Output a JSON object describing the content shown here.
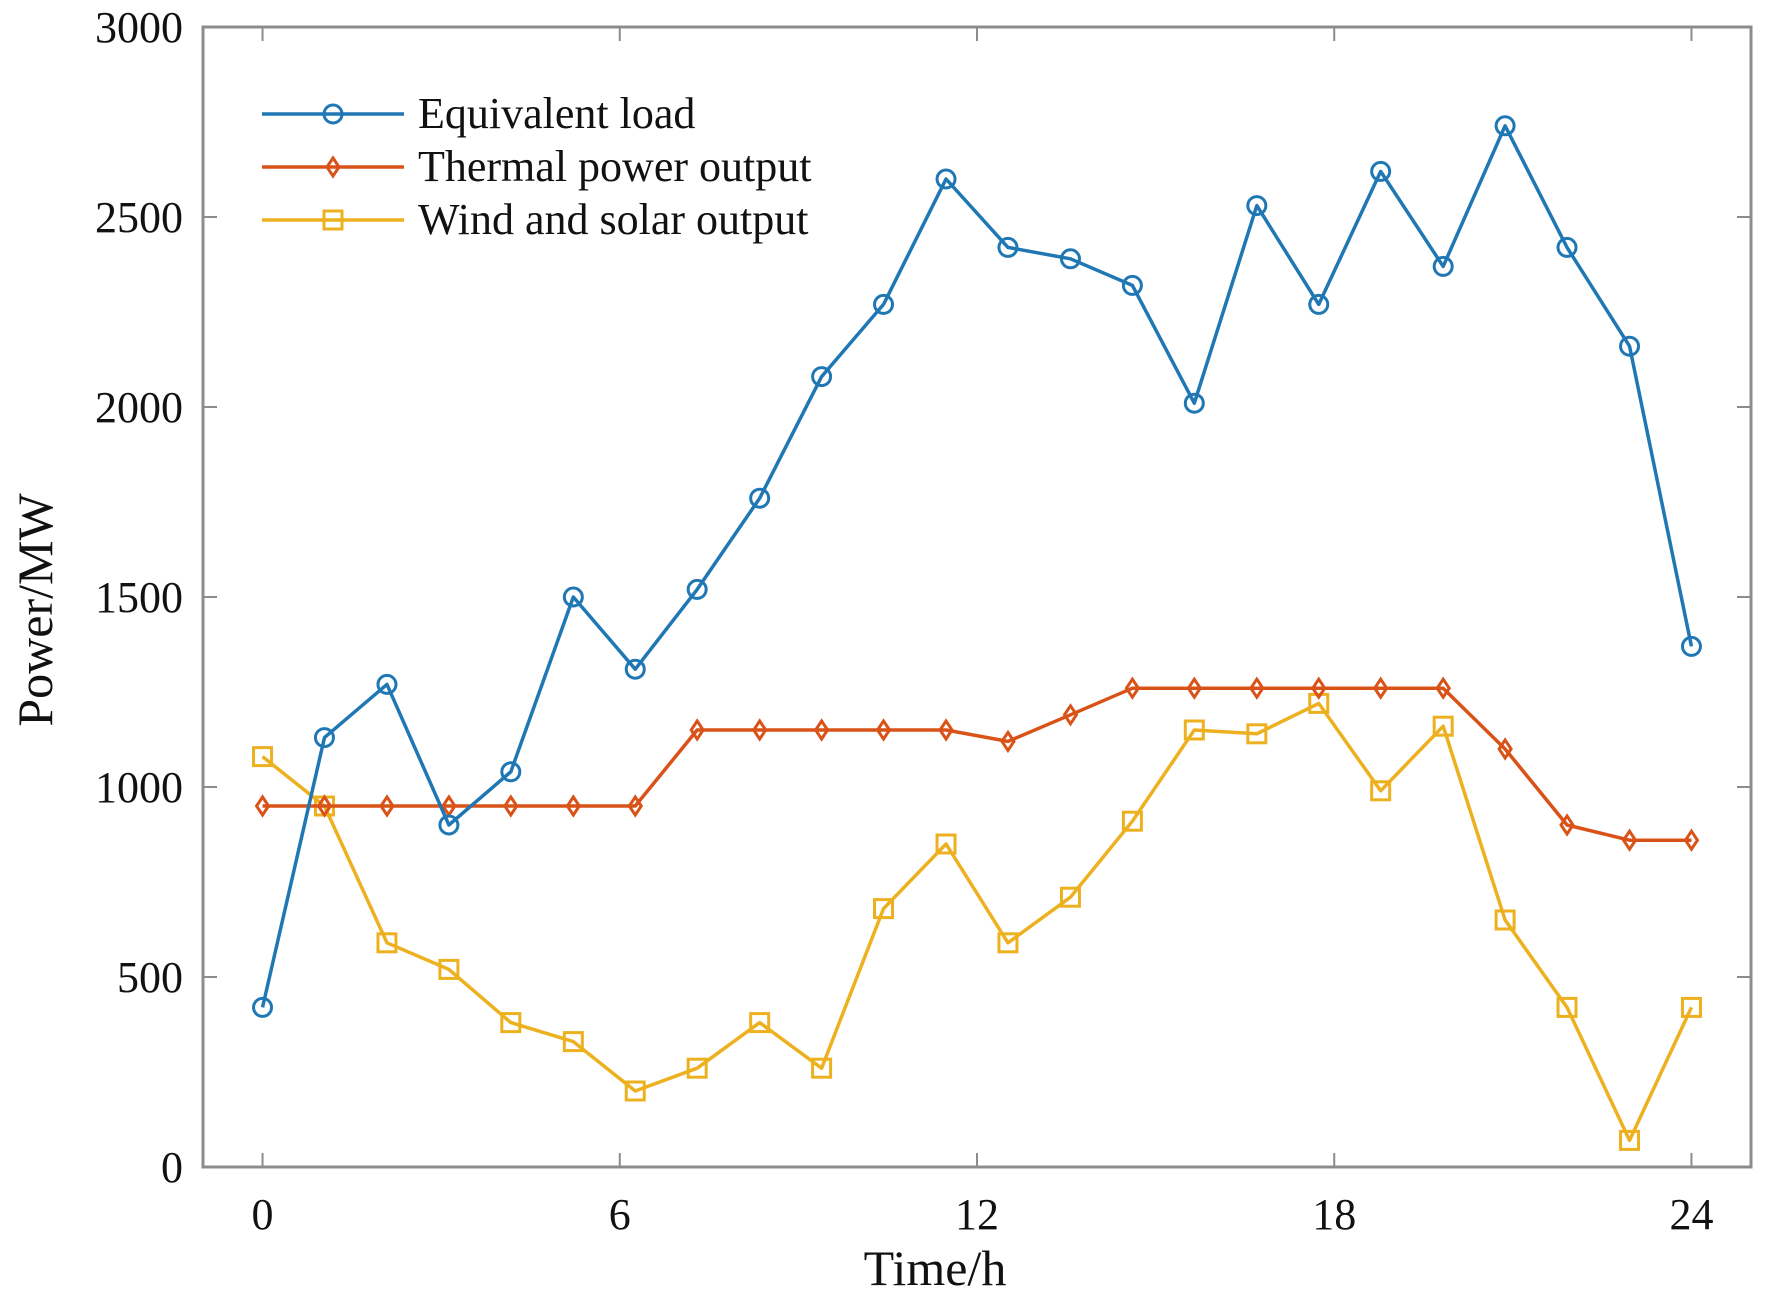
{
  "chart_data": {
    "type": "line",
    "title": "",
    "xlabel": "Time/h",
    "ylabel": "Power/MW",
    "xlim": [
      -1,
      25
    ],
    "ylim": [
      0,
      3000
    ],
    "xticks": [
      0,
      6,
      12,
      18,
      24
    ],
    "xtick_labels": [
      "0",
      "6",
      "12",
      "18",
      "24"
    ],
    "yticks": [
      0,
      500,
      1000,
      1500,
      2000,
      2500,
      3000
    ],
    "ytick_labels": [
      "0",
      "500",
      "1000",
      "1500",
      "2000",
      "2500",
      "3000"
    ],
    "grid": false,
    "legend_position": "top-left",
    "x": [
      0,
      1.04,
      2.09,
      3.13,
      4.17,
      5.22,
      6.26,
      7.3,
      8.35,
      9.39,
      10.43,
      11.48,
      12.52,
      13.57,
      14.61,
      15.65,
      16.7,
      17.74,
      18.78,
      19.83,
      20.87,
      21.91,
      22.96,
      24
    ],
    "series": [
      {
        "name": "Equivalent load",
        "color": "#1f77b4",
        "marker": "circle",
        "values": [
          420,
          1130,
          1270,
          900,
          1040,
          1500,
          1310,
          1520,
          1760,
          2080,
          2270,
          2600,
          2420,
          2390,
          2320,
          2010,
          2530,
          2270,
          2620,
          2370,
          2740,
          2420,
          2160,
          1370
        ]
      },
      {
        "name": "Thermal power output",
        "color": "#d95319",
        "marker": "diamond",
        "values": [
          950,
          950,
          950,
          950,
          950,
          950,
          950,
          1150,
          1150,
          1150,
          1150,
          1150,
          1120,
          1190,
          1260,
          1260,
          1260,
          1260,
          1260,
          1260,
          1100,
          900,
          860,
          860
        ]
      },
      {
        "name": "Wind and solar output",
        "color": "#edb120",
        "marker": "square",
        "values": [
          1080,
          950,
          590,
          520,
          380,
          330,
          200,
          260,
          380,
          260,
          680,
          850,
          590,
          710,
          910,
          1150,
          1140,
          1220,
          990,
          1160,
          650,
          420,
          70,
          420
        ]
      }
    ]
  }
}
